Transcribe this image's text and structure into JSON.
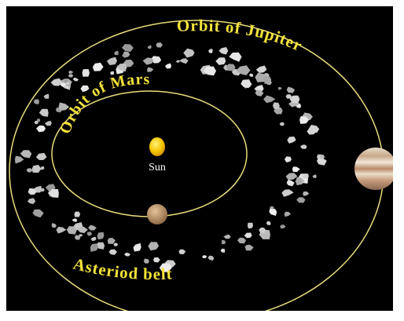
{
  "labels": {
    "jupiter_orbit": "Orbit of Jupiter",
    "mars_orbit": "Orbit of Mars",
    "sun": "Sun",
    "asteroid_belt": "Asteriod belt"
  }
}
